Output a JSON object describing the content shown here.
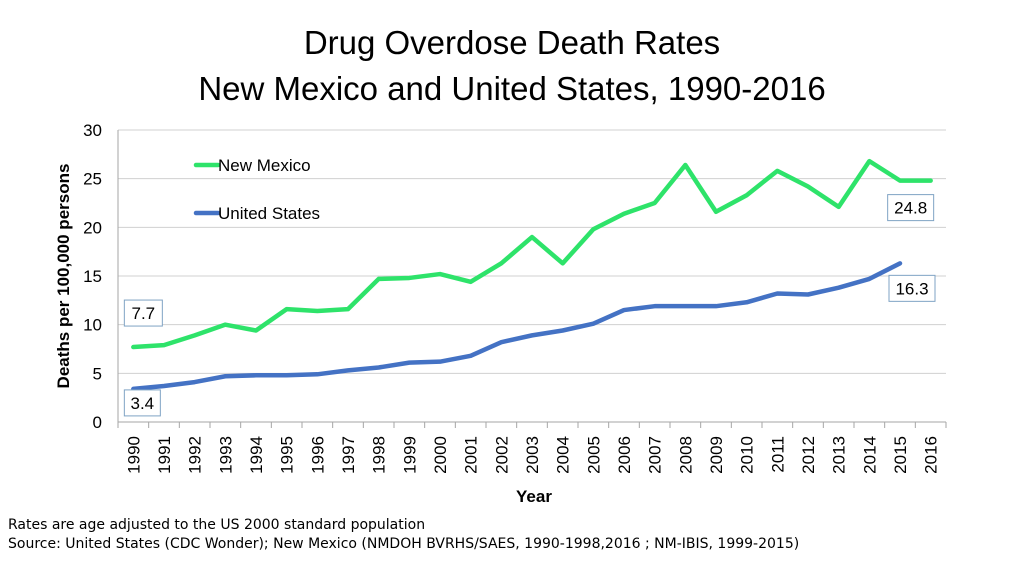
{
  "title_line1": "Drug Overdose Death Rates",
  "title_line2": "New Mexico and United States, 1990-2016",
  "footnotes": {
    "line1": "Rates are age adjusted to the US 2000 standard population",
    "line2": "Source: United States (CDC Wonder); New Mexico (NMDOH BVRHS/SAES, 1990-1998,2016 ; NM-IBIS, 1999-2015)"
  },
  "chart_data": {
    "type": "line",
    "title": "Drug Overdose Death Rates New Mexico and United States, 1990-2016",
    "xlabel": "Year",
    "ylabel": "Deaths per 100,000 persons",
    "ylim": [
      0,
      30
    ],
    "yticks": [
      0,
      5,
      10,
      15,
      20,
      25,
      30
    ],
    "grid": true,
    "legend": "top-left",
    "categories": [
      "1990",
      "1991",
      "1992",
      "1993",
      "1994",
      "1995",
      "1996",
      "1997",
      "1998",
      "1999",
      "2000",
      "2001",
      "2002",
      "2003",
      "2004",
      "2005",
      "2006",
      "2007",
      "2008",
      "2009",
      "2010",
      "2011",
      "2012",
      "2013",
      "2014",
      "2015",
      "2016"
    ],
    "series": [
      {
        "name": "New Mexico",
        "color": "#2ee36a",
        "values": [
          7.7,
          7.9,
          8.9,
          10.0,
          9.4,
          11.6,
          11.4,
          11.6,
          14.7,
          14.8,
          15.2,
          14.4,
          16.3,
          19.0,
          16.3,
          19.8,
          21.4,
          22.5,
          26.4,
          21.6,
          23.3,
          25.8,
          24.2,
          22.1,
          26.8,
          24.8,
          24.8
        ]
      },
      {
        "name": "United States",
        "color": "#4472c4",
        "values": [
          3.4,
          3.7,
          4.1,
          4.7,
          4.8,
          4.8,
          4.9,
          5.3,
          5.6,
          6.1,
          6.2,
          6.8,
          8.2,
          8.9,
          9.4,
          10.1,
          11.5,
          11.9,
          11.9,
          11.9,
          12.3,
          13.2,
          13.1,
          13.8,
          14.7,
          16.3,
          null
        ]
      }
    ],
    "annotations": [
      {
        "series": "New Mexico",
        "year": "1990",
        "text": "7.7"
      },
      {
        "series": "United States",
        "year": "1990",
        "text": "3.4"
      },
      {
        "series": "New Mexico",
        "year": "2016",
        "text": "24.8"
      },
      {
        "series": "United States",
        "year": "2015",
        "text": "16.3"
      }
    ]
  }
}
